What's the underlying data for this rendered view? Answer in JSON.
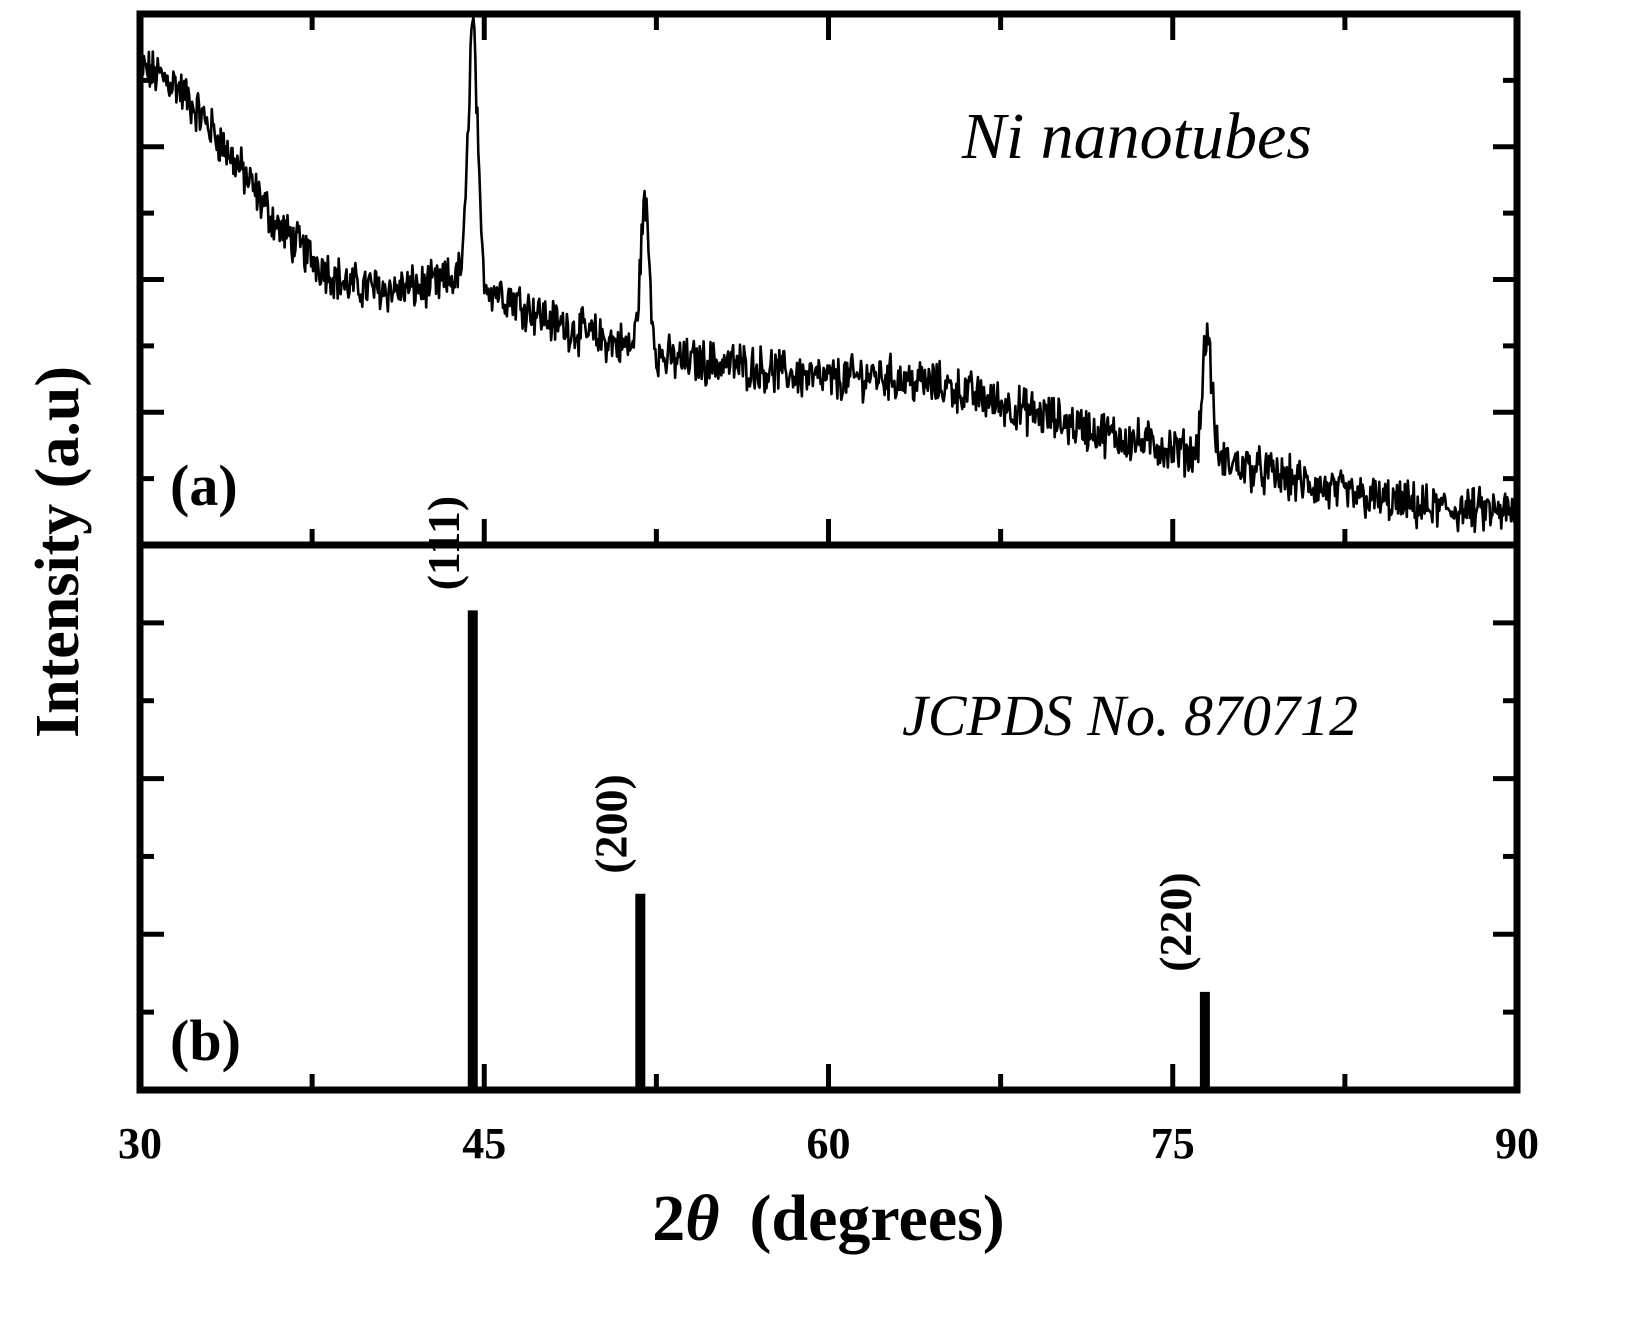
{
  "chart_data": [
    {
      "panel": "(a)",
      "type": "line",
      "annotation": "Ni nanotubes",
      "xlim": [
        30,
        90
      ],
      "peaks": [
        {
          "x": 44.5,
          "y": 0.98
        },
        {
          "x": 52.0,
          "y": 0.64
        },
        {
          "x": 76.5,
          "y": 0.4
        }
      ],
      "background": [
        {
          "x": 30.0,
          "y": 0.9
        },
        {
          "x": 31.5,
          "y": 0.87
        },
        {
          "x": 33.0,
          "y": 0.79
        },
        {
          "x": 34.5,
          "y": 0.7
        },
        {
          "x": 36.0,
          "y": 0.6
        },
        {
          "x": 37.5,
          "y": 0.54
        },
        {
          "x": 39.0,
          "y": 0.49
        },
        {
          "x": 41.0,
          "y": 0.48
        },
        {
          "x": 43.0,
          "y": 0.49
        },
        {
          "x": 44.0,
          "y": 0.51
        },
        {
          "x": 46.0,
          "y": 0.47
        },
        {
          "x": 48.0,
          "y": 0.42
        },
        {
          "x": 50.0,
          "y": 0.39
        },
        {
          "x": 53.0,
          "y": 0.35
        },
        {
          "x": 56.0,
          "y": 0.34
        },
        {
          "x": 60.0,
          "y": 0.31
        },
        {
          "x": 62.0,
          "y": 0.32
        },
        {
          "x": 65.0,
          "y": 0.3
        },
        {
          "x": 68.0,
          "y": 0.26
        },
        {
          "x": 72.0,
          "y": 0.21
        },
        {
          "x": 75.0,
          "y": 0.18
        },
        {
          "x": 78.0,
          "y": 0.15
        },
        {
          "x": 82.0,
          "y": 0.1
        },
        {
          "x": 86.0,
          "y": 0.07
        },
        {
          "x": 90.0,
          "y": 0.06
        }
      ]
    },
    {
      "panel": "(b)",
      "type": "bar",
      "annotation": "JCPDS No. 870712",
      "xlim": [
        30,
        90
      ],
      "ylim": [
        0,
        1
      ],
      "sticks": [
        {
          "x": 44.5,
          "value": 0.88,
          "label": "(111)"
        },
        {
          "x": 51.8,
          "value": 0.36,
          "label": "(200)"
        },
        {
          "x": 76.4,
          "value": 0.18,
          "label": "(220)"
        }
      ]
    }
  ],
  "axes": {
    "xlabel_prefix": "2",
    "xlabel_symbol": "θ",
    "xlabel_suffix": "(degrees)",
    "ylabel": "Intensity (a.u)",
    "xticks": [
      30,
      45,
      60,
      75,
      90
    ]
  }
}
